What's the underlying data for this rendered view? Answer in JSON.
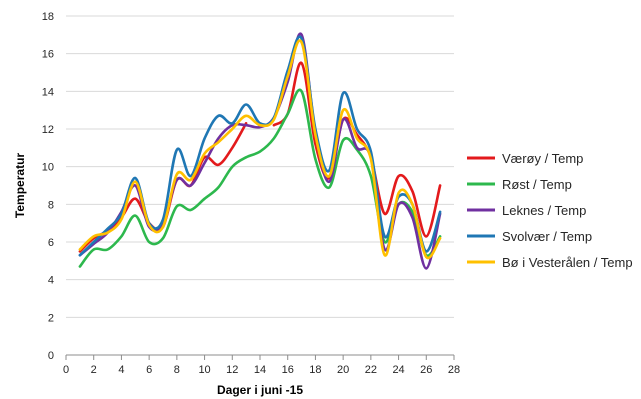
{
  "chart_data": {
    "type": "line",
    "xlabel": "Dager i juni -15",
    "ylabel": "Temperatur",
    "xlim": [
      0,
      28
    ],
    "ylim": [
      0,
      18
    ],
    "xticks": [
      0,
      2,
      4,
      6,
      8,
      10,
      12,
      14,
      16,
      18,
      20,
      22,
      24,
      26,
      28
    ],
    "yticks": [
      0,
      2,
      4,
      6,
      8,
      10,
      12,
      14,
      16,
      18
    ],
    "grid": "horizontal",
    "legend": "right",
    "x": [
      1,
      2,
      3,
      4,
      5,
      6,
      7,
      8,
      9,
      10,
      11,
      12,
      13,
      14,
      15,
      16,
      17,
      18,
      19,
      20,
      21,
      22,
      23,
      24,
      25,
      26,
      27
    ],
    "series": [
      {
        "name": "Værøy / Temp",
        "color": "#e31a1c",
        "values": [
          5.5,
          6.2,
          6.6,
          7.3,
          8.3,
          7.0,
          6.8,
          9.3,
          9.0,
          10.5,
          10.1,
          11.0,
          12.3,
          null,
          12.2,
          12.8,
          15.5,
          11.2,
          9.4,
          12.5,
          11.7,
          10.5,
          7.5,
          9.5,
          8.7,
          6.3,
          9.0
        ]
      },
      {
        "name": "Røst / Temp",
        "color": "#2db84d",
        "values": [
          4.7,
          5.6,
          5.6,
          6.3,
          7.4,
          6.0,
          6.2,
          7.9,
          7.7,
          8.3,
          8.9,
          10.0,
          10.5,
          10.8,
          11.5,
          12.8,
          14.0,
          10.4,
          8.9,
          11.4,
          10.9,
          9.5,
          6.0,
          8.0,
          7.6,
          5.3,
          6.3
        ]
      },
      {
        "name": "Leknes / Temp",
        "color": "#7030a0",
        "values": [
          5.3,
          5.9,
          6.5,
          7.6,
          9.0,
          6.8,
          7.0,
          9.3,
          9.0,
          10.2,
          11.5,
          12.2,
          12.2,
          12.1,
          12.6,
          14.5,
          17.0,
          11.8,
          9.2,
          12.5,
          11.0,
          10.5,
          5.6,
          8.0,
          7.3,
          4.6,
          7.5
        ]
      },
      {
        "name": "Svolvær / Temp",
        "color": "#1f77b4",
        "values": [
          5.3,
          6.0,
          6.7,
          7.5,
          9.4,
          7.0,
          7.2,
          10.9,
          9.5,
          11.5,
          12.7,
          12.3,
          13.3,
          12.3,
          12.6,
          15.1,
          16.8,
          12.0,
          9.8,
          13.9,
          12.0,
          10.8,
          6.3,
          8.4,
          8.0,
          5.5,
          7.6
        ]
      },
      {
        "name": "Bø i Vesterålen / Temp",
        "color": "#ffc000",
        "values": [
          5.6,
          6.3,
          6.5,
          7.2,
          9.2,
          6.9,
          6.8,
          9.6,
          9.3,
          10.7,
          11.3,
          12.0,
          12.7,
          12.2,
          12.5,
          14.8,
          16.6,
          11.7,
          9.5,
          13.0,
          11.5,
          10.4,
          5.3,
          8.6,
          8.0,
          5.2,
          6.2
        ]
      }
    ]
  }
}
